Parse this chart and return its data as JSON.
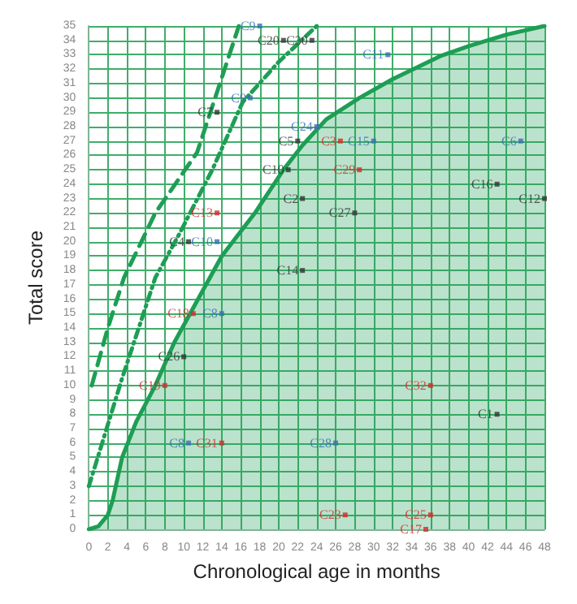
{
  "chart_data": {
    "type": "scatter",
    "xlabel": "Chronological age in months",
    "ylabel": "Total score",
    "xlim": [
      0,
      48
    ],
    "ylim": [
      0,
      35
    ],
    "xticks": [
      0,
      2,
      4,
      6,
      8,
      10,
      12,
      14,
      16,
      18,
      20,
      22,
      24,
      26,
      28,
      30,
      32,
      34,
      36,
      38,
      40,
      42,
      44,
      46,
      48
    ],
    "yticks": [
      0,
      1,
      2,
      3,
      4,
      5,
      6,
      7,
      8,
      9,
      10,
      11,
      12,
      13,
      14,
      15,
      16,
      17,
      18,
      19,
      20,
      21,
      22,
      23,
      24,
      25,
      26,
      27,
      28,
      29,
      30,
      31,
      32,
      33,
      34,
      35
    ],
    "grid": true,
    "marker": "square",
    "series": [
      {
        "type": "area",
        "color": "#1e9e55",
        "line_style": "solid",
        "marker": "none",
        "x": [
          0,
          1,
          2,
          2.5,
          3.5,
          5,
          7,
          9,
          11.5,
          14,
          17.5,
          20.5,
          22.5,
          25,
          28.5,
          32,
          37,
          40,
          44,
          48
        ],
        "values": [
          0,
          0.2,
          1,
          2,
          5,
          7.5,
          10,
          13,
          16,
          19,
          22,
          25,
          26.7,
          28.5,
          30,
          31.3,
          32.9,
          33.6,
          34.4,
          35
        ]
      },
      {
        "type": "line",
        "color": "#1e9e55",
        "line_style": "dashed",
        "marker": "none",
        "x": [
          0.3,
          2,
          3.7,
          7,
          11.4,
          15.8
        ],
        "values": [
          10,
          14,
          17.5,
          22,
          26.2,
          35
        ]
      },
      {
        "type": "line",
        "color": "#1e9e55",
        "line_style": "dotted",
        "marker": "none",
        "x": [
          0,
          3.5,
          7,
          9.5,
          13,
          16.2,
          20,
          24
        ],
        "values": [
          3,
          10.5,
          17.5,
          20.5,
          25,
          29.7,
          32.5,
          35
        ]
      },
      {
        "color": "#3a6db5",
        "x": [
          18,
          17,
          31.5,
          24,
          45.5,
          30,
          13.5,
          26,
          10.5
        ],
        "values": [
          35,
          30,
          33,
          28,
          27,
          27,
          20,
          6,
          6
        ],
        "value_labels": [
          "C9",
          "C9",
          "C11",
          "C24",
          "C6",
          "C15",
          "C10",
          "C28",
          "C8"
        ]
      },
      {
        "color": "#d42a2a",
        "x": [
          26.5,
          28.5,
          13.5,
          11,
          8,
          14,
          36,
          27,
          36,
          35.5
        ],
        "values": [
          27,
          25,
          22,
          15,
          10,
          6,
          10,
          1,
          1,
          0
        ],
        "value_labels": [
          "C3",
          "C29",
          "C13",
          "C18",
          "C19",
          "C31",
          "C32",
          "C23",
          "C25",
          "C17"
        ]
      },
      {
        "color": "#333333",
        "x": [
          20.5,
          23.5,
          13.5,
          22,
          21,
          43,
          22.5,
          48,
          28,
          10.5,
          22.5,
          10,
          43
        ],
        "values": [
          34,
          34,
          29,
          27,
          25,
          24,
          23,
          23,
          22,
          20,
          18,
          12,
          8
        ],
        "value_labels": [
          "C20",
          "C30",
          "C7",
          "C5",
          "C10",
          "C16",
          "C2",
          "C12",
          "C27",
          "C4",
          "C14",
          "C26",
          "C1"
        ]
      },
      {
        "color": "#3a6db5",
        "x": [
          14
        ],
        "values": [
          15
        ],
        "value_labels": [
          "C8"
        ]
      }
    ]
  }
}
